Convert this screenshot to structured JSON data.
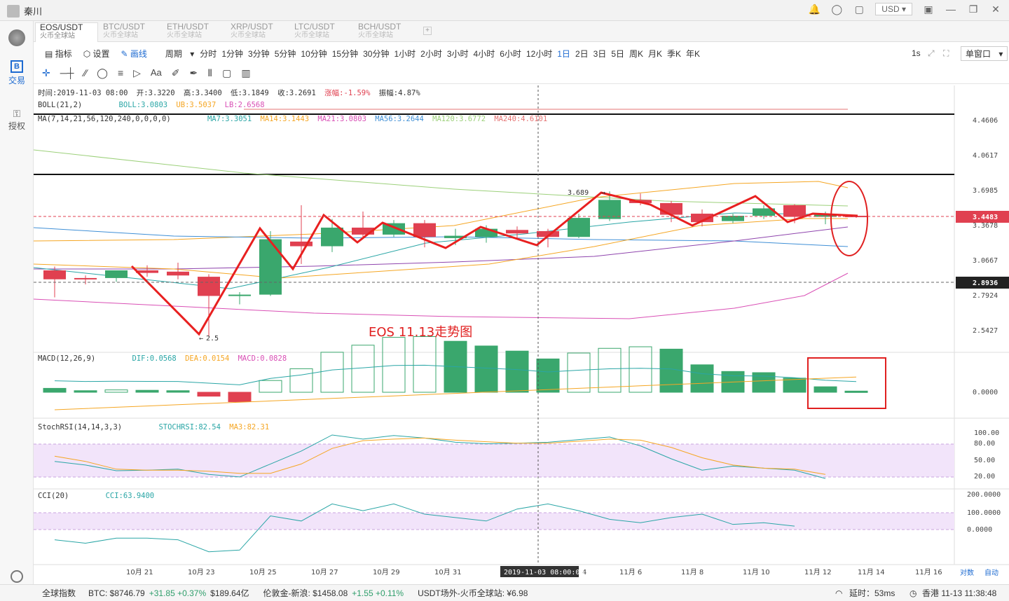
{
  "user": {
    "name": "秦川"
  },
  "header": {
    "currency": "USD"
  },
  "sidebar": [
    {
      "label": "交易",
      "icon": "b-icon"
    },
    {
      "label": "授权",
      "icon": "key-icon"
    }
  ],
  "tabs": [
    {
      "pair": "EOS/USDT",
      "exchange": "火币全球站",
      "active": true
    },
    {
      "pair": "BTC/USDT",
      "exchange": "火币全球站"
    },
    {
      "pair": "ETH/USDT",
      "exchange": "火币全球站"
    },
    {
      "pair": "XRP/USDT",
      "exchange": "火币全球站"
    },
    {
      "pair": "LTC/USDT",
      "exchange": "火币全球站"
    },
    {
      "pair": "BCH/USDT",
      "exchange": "火币全球站"
    }
  ],
  "toolbar": {
    "indicator": "指标",
    "settings": "设置",
    "draw": "画线",
    "period": "周期",
    "periods": [
      "分时",
      "1分钟",
      "3分钟",
      "5分钟",
      "10分钟",
      "15分钟",
      "30分钟",
      "1小时",
      "2小时",
      "3小时",
      "4小时",
      "6小时",
      "12小时",
      "1日",
      "2日",
      "3日",
      "5日",
      "周K",
      "月K",
      "季K",
      "年K"
    ],
    "active_period": "1日",
    "interval": "1s",
    "window": "单窗口"
  },
  "info": {
    "time": "时间:2019-11-03 08:00",
    "open": "开:3.3220",
    "high": "高:3.3400",
    "low": "低:3.1849",
    "close": "收:3.2691",
    "change": "涨幅:-1.59%",
    "amp": "振幅:4.87%"
  },
  "boll": {
    "name": "BOLL(21,2)",
    "boll": "BOLL:3.0803",
    "ub": "UB:3.5037",
    "lb": "LB:2.6568"
  },
  "ma": {
    "name": "MA(7,14,21,56,120,240,0,0,0,0)",
    "items": [
      "MA7:3.3051",
      "MA14:3.1443",
      "MA21:3.0803",
      "MA56:3.2644",
      "MA120:3.6772",
      "MA240:4.6101"
    ]
  },
  "macd": {
    "name": "MACD(12,26,9)",
    "dif": "DIF:0.0568",
    "dea": "DEA:0.0154",
    "macd": "MACD:0.0828"
  },
  "stoch": {
    "name": "StochRSI(14,14,3,3)",
    "k": "STOCHRSI:82.54",
    "ma": "MA3:82.31"
  },
  "cci": {
    "name": "CCI(20)",
    "val": "CCI:63.9400"
  },
  "annotations": {
    "title": "EOS 11.13走势图",
    "high": "3.689",
    "low": "2.5"
  },
  "price_axis": [
    "4.4606",
    "4.0617",
    "3.6985",
    "3.3678",
    "3.0667",
    "2.7924",
    "2.5427"
  ],
  "price_tags": {
    "current": "3.4483",
    "line": "2.8936"
  },
  "macd_axis": [
    "0.0000"
  ],
  "stoch_axis": [
    "100.00",
    "80.00",
    "50.00",
    "20.00"
  ],
  "cci_axis": [
    "200.0000",
    "100.0000",
    "0.0000"
  ],
  "date_axis": [
    "10月 21",
    "10月 23",
    "10月 25",
    "10月 27",
    "10月 29",
    "10月 31",
    "11月 4",
    "11月 6",
    "11月 8",
    "11月 10",
    "11月 12",
    "11月 14",
    "11月 16"
  ],
  "crosshair_date": "2019-11-03 08:00:00",
  "axis_buttons": {
    "log": "对数",
    "auto": "自动"
  },
  "footer": {
    "index": "全球指数",
    "btc": "BTC: $8746.79",
    "btc_chg": "+31.85 +0.37%",
    "btc_vol": "$189.64亿",
    "gold": "伦敦金-新浪: $1458.08",
    "gold_chg": "+1.55 +0.11%",
    "usdt": "USDT场外-火币全球站: ¥6.98",
    "latency": "延时：53ms",
    "clock": "香港 11-13 11:38:48"
  },
  "chart_data": {
    "type": "candlestick",
    "candles": [
      {
        "o": 2.99,
        "h": 3.02,
        "l": 2.78,
        "c": 2.92
      },
      {
        "o": 2.93,
        "h": 2.95,
        "l": 2.88,
        "c": 2.92
      },
      {
        "o": 2.93,
        "h": 2.99,
        "l": 2.9,
        "c": 2.99
      },
      {
        "o": 2.99,
        "h": 3.03,
        "l": 2.94,
        "c": 2.97
      },
      {
        "o": 2.98,
        "h": 3.05,
        "l": 2.92,
        "c": 2.95
      },
      {
        "o": 2.94,
        "h": 2.96,
        "l": 2.5,
        "c": 2.79
      },
      {
        "o": 2.79,
        "h": 2.82,
        "l": 2.73,
        "c": 2.8
      },
      {
        "o": 2.8,
        "h": 3.32,
        "l": 2.79,
        "c": 3.25
      },
      {
        "o": 3.23,
        "h": 3.56,
        "l": 3.04,
        "c": 3.19
      },
      {
        "o": 3.19,
        "h": 3.43,
        "l": 3.14,
        "c": 3.35
      },
      {
        "o": 3.35,
        "h": 3.5,
        "l": 3.25,
        "c": 3.29
      },
      {
        "o": 3.29,
        "h": 3.42,
        "l": 3.27,
        "c": 3.39
      },
      {
        "o": 3.39,
        "h": 3.42,
        "l": 3.18,
        "c": 3.27
      },
      {
        "o": 3.26,
        "h": 3.34,
        "l": 3.2,
        "c": 3.28
      },
      {
        "o": 3.27,
        "h": 3.37,
        "l": 3.22,
        "c": 3.34
      },
      {
        "o": 3.33,
        "h": 3.36,
        "l": 3.26,
        "c": 3.3
      },
      {
        "o": 3.32,
        "h": 3.34,
        "l": 3.18,
        "c": 3.27
      },
      {
        "o": 3.27,
        "h": 3.48,
        "l": 3.26,
        "c": 3.44
      },
      {
        "o": 3.43,
        "h": 3.69,
        "l": 3.41,
        "c": 3.61
      },
      {
        "o": 3.61,
        "h": 3.67,
        "l": 3.56,
        "c": 3.58
      },
      {
        "o": 3.58,
        "h": 3.6,
        "l": 3.4,
        "c": 3.47
      },
      {
        "o": 3.48,
        "h": 3.52,
        "l": 3.36,
        "c": 3.4
      },
      {
        "o": 3.41,
        "h": 3.48,
        "l": 3.39,
        "c": 3.46
      },
      {
        "o": 3.46,
        "h": 3.56,
        "l": 3.43,
        "c": 3.53
      },
      {
        "o": 3.56,
        "h": 3.57,
        "l": 3.39,
        "c": 3.45
      },
      {
        "o": 3.45,
        "h": 3.5,
        "l": 3.38,
        "c": 3.47
      },
      {
        "o": 3.46,
        "h": 3.47,
        "l": 3.44,
        "c": 3.45
      }
    ],
    "macd_hist": [
      0.01,
      0.004,
      0.006,
      0.005,
      0.004,
      -0.01,
      -0.024,
      0.03,
      0.06,
      0.102,
      0.12,
      0.14,
      0.142,
      0.13,
      0.118,
      0.105,
      0.085,
      0.1,
      0.112,
      0.116,
      0.11,
      0.07,
      0.053,
      0.05,
      0.036,
      0.014,
      0.003
    ],
    "stoch_k": [
      45,
      38,
      27,
      28,
      30,
      20,
      15,
      40,
      65,
      96,
      88,
      95,
      90,
      82,
      79,
      80,
      82,
      87,
      92,
      75,
      50,
      28,
      36,
      32,
      28,
      12
    ],
    "stoch_d": [
      55,
      45,
      30,
      28,
      28,
      26,
      22,
      22,
      40,
      70,
      85,
      88,
      90,
      86,
      83,
      80,
      80,
      84,
      88,
      86,
      72,
      52,
      38,
      32,
      30,
      20
    ],
    "cci": [
      -60,
      -80,
      -50,
      -50,
      -60,
      -130,
      -120,
      80,
      50,
      150,
      110,
      150,
      90,
      70,
      50,
      120,
      150,
      110,
      60,
      40,
      70,
      90,
      30,
      40,
      20
    ]
  }
}
